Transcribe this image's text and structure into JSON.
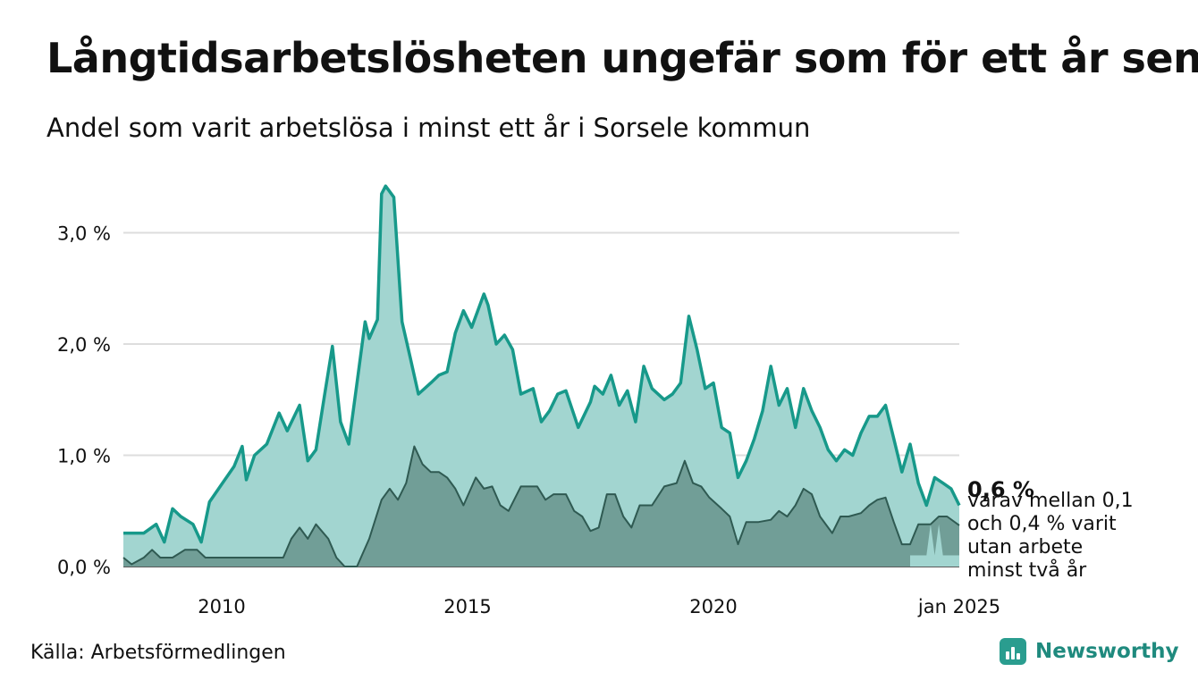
{
  "title": "Långtidsarbetslösheten ungefär som för ett år sen",
  "subtitle": "Andel som varit arbetslösa i minst ett år i Sorsele kommun",
  "source": "Källa: Arbetsförmedlingen",
  "brand": {
    "name": "Newsworthy",
    "icon": "bar-chart-logo-icon"
  },
  "colors": {
    "main_line": "#17998a",
    "main_fill": "#a2d5d0",
    "sub_line": "#2f5a52",
    "sub_fill": "#719e97",
    "grid": "#dddddd"
  },
  "chart_data": {
    "type": "area",
    "title": "Långtidsarbetslösheten ungefär som för ett år sen",
    "subtitle": "Andel som varit arbetslösa i minst ett år i Sorsele kommun",
    "xlabel": "",
    "ylabel": "",
    "x_ticks": [
      "2010",
      "2015",
      "2020",
      "jan 2025"
    ],
    "y_ticks": [
      "0,0 %",
      "1,0 %",
      "2,0 %",
      "3,0 %"
    ],
    "ylim": [
      0,
      3.6
    ],
    "xlim": [
      "2008-01",
      "2025-01"
    ],
    "grid": true,
    "end_label": {
      "value_text": "0,6 %",
      "note": "varav mellan 0,1 och 0,4 % varit utan arbete minst två år"
    },
    "series": [
      {
        "key": "minst_ett_ar",
        "points": [
          [
            "2008-01",
            0.3
          ],
          [
            "2008-06",
            0.3
          ],
          [
            "2008-09",
            0.38
          ],
          [
            "2008-11",
            0.22
          ],
          [
            "2009-01",
            0.52
          ],
          [
            "2009-03",
            0.45
          ],
          [
            "2009-06",
            0.38
          ],
          [
            "2009-08",
            0.22
          ],
          [
            "2009-10",
            0.58
          ],
          [
            "2010-01",
            0.74
          ],
          [
            "2010-04",
            0.9
          ],
          [
            "2010-06",
            1.08
          ],
          [
            "2010-07",
            0.78
          ],
          [
            "2010-09",
            1.0
          ],
          [
            "2010-12",
            1.1
          ],
          [
            "2011-03",
            1.38
          ],
          [
            "2011-05",
            1.22
          ],
          [
            "2011-08",
            1.45
          ],
          [
            "2011-10",
            0.95
          ],
          [
            "2011-12",
            1.05
          ],
          [
            "2012-02",
            1.52
          ],
          [
            "2012-04",
            1.98
          ],
          [
            "2012-06",
            1.3
          ],
          [
            "2012-08",
            1.1
          ],
          [
            "2012-10",
            1.65
          ],
          [
            "2012-12",
            2.2
          ],
          [
            "2013-01",
            2.05
          ],
          [
            "2013-03",
            2.22
          ],
          [
            "2013-04",
            3.35
          ],
          [
            "2013-05",
            3.42
          ],
          [
            "2013-07",
            3.32
          ],
          [
            "2013-09",
            2.2
          ],
          [
            "2013-11",
            1.88
          ],
          [
            "2014-01",
            1.55
          ],
          [
            "2014-04",
            1.65
          ],
          [
            "2014-06",
            1.72
          ],
          [
            "2014-08",
            1.75
          ],
          [
            "2014-10",
            2.1
          ],
          [
            "2014-12",
            2.3
          ],
          [
            "2015-02",
            2.15
          ],
          [
            "2015-05",
            2.45
          ],
          [
            "2015-06",
            2.35
          ],
          [
            "2015-08",
            2.0
          ],
          [
            "2015-10",
            2.08
          ],
          [
            "2015-12",
            1.95
          ],
          [
            "2016-02",
            1.55
          ],
          [
            "2016-05",
            1.6
          ],
          [
            "2016-07",
            1.3
          ],
          [
            "2016-09",
            1.4
          ],
          [
            "2016-11",
            1.55
          ],
          [
            "2017-01",
            1.58
          ],
          [
            "2017-04",
            1.25
          ],
          [
            "2017-07",
            1.48
          ],
          [
            "2017-08",
            1.62
          ],
          [
            "2017-10",
            1.55
          ],
          [
            "2017-12",
            1.72
          ],
          [
            "2018-02",
            1.45
          ],
          [
            "2018-04",
            1.58
          ],
          [
            "2018-06",
            1.3
          ],
          [
            "2018-08",
            1.8
          ],
          [
            "2018-10",
            1.6
          ],
          [
            "2019-01",
            1.5
          ],
          [
            "2019-03",
            1.55
          ],
          [
            "2019-05",
            1.65
          ],
          [
            "2019-07",
            2.25
          ],
          [
            "2019-09",
            1.95
          ],
          [
            "2019-11",
            1.6
          ],
          [
            "2020-01",
            1.65
          ],
          [
            "2020-03",
            1.25
          ],
          [
            "2020-05",
            1.2
          ],
          [
            "2020-07",
            0.8
          ],
          [
            "2020-09",
            0.95
          ],
          [
            "2020-11",
            1.15
          ],
          [
            "2021-01",
            1.4
          ],
          [
            "2021-03",
            1.8
          ],
          [
            "2021-05",
            1.45
          ],
          [
            "2021-07",
            1.6
          ],
          [
            "2021-09",
            1.25
          ],
          [
            "2021-11",
            1.6
          ],
          [
            "2022-01",
            1.4
          ],
          [
            "2022-03",
            1.25
          ],
          [
            "2022-05",
            1.05
          ],
          [
            "2022-07",
            0.95
          ],
          [
            "2022-09",
            1.05
          ],
          [
            "2022-11",
            1.0
          ],
          [
            "2023-01",
            1.2
          ],
          [
            "2023-03",
            1.35
          ],
          [
            "2023-05",
            1.35
          ],
          [
            "2023-07",
            1.45
          ],
          [
            "2023-09",
            1.15
          ],
          [
            "2023-11",
            0.85
          ],
          [
            "2024-01",
            1.1
          ],
          [
            "2024-03",
            0.75
          ],
          [
            "2024-05",
            0.55
          ],
          [
            "2024-07",
            0.8
          ],
          [
            "2024-09",
            0.75
          ],
          [
            "2024-11",
            0.7
          ],
          [
            "2025-01",
            0.55
          ]
        ]
      },
      {
        "key": "minst_tva_ar",
        "points": [
          [
            "2008-01",
            0.08
          ],
          [
            "2008-03",
            0.02
          ],
          [
            "2008-06",
            0.08
          ],
          [
            "2008-08",
            0.15
          ],
          [
            "2008-10",
            0.08
          ],
          [
            "2009-01",
            0.08
          ],
          [
            "2009-04",
            0.15
          ],
          [
            "2009-07",
            0.15
          ],
          [
            "2009-09",
            0.08
          ],
          [
            "2010-06",
            0.08
          ],
          [
            "2011-01",
            0.08
          ],
          [
            "2011-04",
            0.08
          ],
          [
            "2011-06",
            0.25
          ],
          [
            "2011-08",
            0.35
          ],
          [
            "2011-10",
            0.25
          ],
          [
            "2011-12",
            0.38
          ],
          [
            "2012-03",
            0.25
          ],
          [
            "2012-05",
            0.08
          ],
          [
            "2012-07",
            0.0
          ],
          [
            "2012-10",
            0.0
          ],
          [
            "2013-01",
            0.25
          ],
          [
            "2013-04",
            0.6
          ],
          [
            "2013-06",
            0.7
          ],
          [
            "2013-08",
            0.6
          ],
          [
            "2013-10",
            0.75
          ],
          [
            "2013-12",
            1.08
          ],
          [
            "2014-02",
            0.92
          ],
          [
            "2014-04",
            0.85
          ],
          [
            "2014-06",
            0.85
          ],
          [
            "2014-08",
            0.8
          ],
          [
            "2014-10",
            0.7
          ],
          [
            "2014-12",
            0.55
          ],
          [
            "2015-03",
            0.8
          ],
          [
            "2015-05",
            0.7
          ],
          [
            "2015-07",
            0.72
          ],
          [
            "2015-09",
            0.55
          ],
          [
            "2015-11",
            0.5
          ],
          [
            "2016-02",
            0.72
          ],
          [
            "2016-06",
            0.72
          ],
          [
            "2016-08",
            0.6
          ],
          [
            "2016-10",
            0.65
          ],
          [
            "2017-01",
            0.65
          ],
          [
            "2017-03",
            0.5
          ],
          [
            "2017-05",
            0.45
          ],
          [
            "2017-07",
            0.32
          ],
          [
            "2017-09",
            0.35
          ],
          [
            "2017-11",
            0.65
          ],
          [
            "2018-01",
            0.65
          ],
          [
            "2018-03",
            0.45
          ],
          [
            "2018-05",
            0.35
          ],
          [
            "2018-07",
            0.55
          ],
          [
            "2018-10",
            0.55
          ],
          [
            "2019-01",
            0.72
          ],
          [
            "2019-04",
            0.75
          ],
          [
            "2019-06",
            0.95
          ],
          [
            "2019-08",
            0.75
          ],
          [
            "2019-10",
            0.72
          ],
          [
            "2019-12",
            0.62
          ],
          [
            "2020-03",
            0.52
          ],
          [
            "2020-05",
            0.45
          ],
          [
            "2020-07",
            0.2
          ],
          [
            "2020-09",
            0.4
          ],
          [
            "2020-12",
            0.4
          ],
          [
            "2021-03",
            0.42
          ],
          [
            "2021-05",
            0.5
          ],
          [
            "2021-07",
            0.45
          ],
          [
            "2021-09",
            0.55
          ],
          [
            "2021-11",
            0.7
          ],
          [
            "2022-01",
            0.65
          ],
          [
            "2022-03",
            0.45
          ],
          [
            "2022-06",
            0.3
          ],
          [
            "2022-08",
            0.45
          ],
          [
            "2022-10",
            0.45
          ],
          [
            "2023-01",
            0.48
          ],
          [
            "2023-03",
            0.55
          ],
          [
            "2023-05",
            0.6
          ],
          [
            "2023-07",
            0.62
          ],
          [
            "2023-09",
            0.4
          ],
          [
            "2023-11",
            0.2
          ],
          [
            "2024-01",
            0.2
          ],
          [
            "2024-03",
            0.38
          ],
          [
            "2024-06",
            0.38
          ],
          [
            "2024-08",
            0.45
          ],
          [
            "2024-10",
            0.45
          ],
          [
            "2025-01",
            0.37
          ]
        ]
      },
      {
        "key": "minst_tva_ar_lower",
        "points": [
          [
            "2024-01",
            0.1
          ],
          [
            "2024-05",
            0.1
          ],
          [
            "2024-06",
            0.38
          ],
          [
            "2024-07",
            0.1
          ],
          [
            "2024-08",
            0.38
          ],
          [
            "2024-09",
            0.1
          ],
          [
            "2025-01",
            0.1
          ]
        ]
      }
    ]
  }
}
